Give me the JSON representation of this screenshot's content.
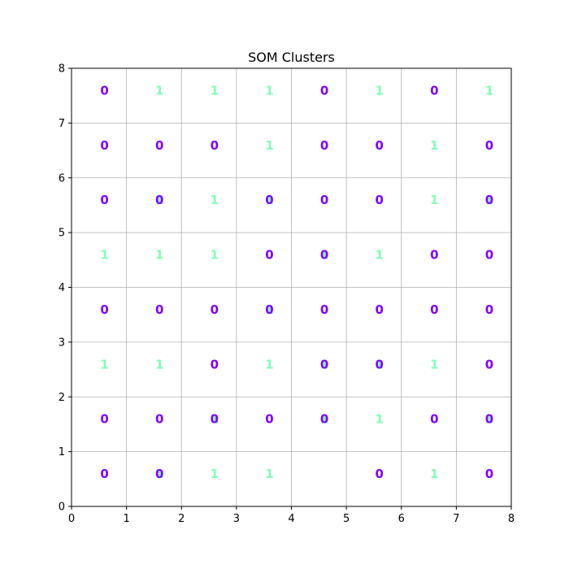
{
  "chart_data": {
    "type": "scatter",
    "title": "SOM Clusters",
    "xlabel": "",
    "ylabel": "",
    "xlim": [
      0,
      8
    ],
    "ylim": [
      0,
      8
    ],
    "xticks": [
      "0",
      "1",
      "2",
      "3",
      "4",
      "5",
      "6",
      "7",
      "8"
    ],
    "yticks": [
      "0",
      "1",
      "2",
      "3",
      "4",
      "5",
      "6",
      "7",
      "8"
    ],
    "grid": true,
    "colors": {
      "0": "#8000ff",
      "1": "#80ffb4"
    },
    "grid_rows_top_to_bottom": [
      [
        [
          "0"
        ],
        [
          "1"
        ],
        [
          "1"
        ],
        [
          "1"
        ],
        [
          "0"
        ],
        [
          "1"
        ],
        [
          "0"
        ],
        [
          "1"
        ]
      ],
      [
        [
          "0"
        ],
        [
          "0"
        ],
        [
          "0"
        ],
        [
          "1"
        ],
        [
          "0"
        ],
        [
          "0"
        ],
        [
          "1"
        ],
        [
          "0"
        ]
      ],
      [
        [
          "0"
        ],
        [
          "1",
          "0"
        ],
        [
          "1"
        ],
        [
          "1",
          "0"
        ],
        [
          "0"
        ],
        [
          "0"
        ],
        [
          "1"
        ],
        [
          "1",
          "0"
        ]
      ],
      [
        [
          "1"
        ],
        [
          "1"
        ],
        [
          "1"
        ],
        [
          "0"
        ],
        [
          "1",
          "0"
        ],
        [
          "1"
        ],
        [
          "0"
        ],
        [
          "0"
        ]
      ],
      [
        [
          "0"
        ],
        [
          "0"
        ],
        [
          "0"
        ],
        [
          "1",
          "0"
        ],
        [
          "0"
        ],
        [
          "0"
        ],
        [
          "0"
        ],
        [
          "0"
        ]
      ],
      [
        [
          "1"
        ],
        [
          "1"
        ],
        [
          "0"
        ],
        [
          "1"
        ],
        [
          "1",
          "0"
        ],
        [
          "1",
          "0"
        ],
        [
          "1"
        ],
        [
          "0"
        ]
      ],
      [
        [
          "0"
        ],
        [
          "0"
        ],
        [
          "1",
          "0"
        ],
        [
          "0"
        ],
        [
          "1",
          "0"
        ],
        [
          "1"
        ],
        [
          "0"
        ],
        [
          "1",
          "0"
        ]
      ],
      [
        [
          "0"
        ],
        [
          "1",
          "0"
        ],
        [
          "1"
        ],
        [
          "1"
        ],
        [],
        [
          "0"
        ],
        [
          "1"
        ],
        [
          "0"
        ]
      ]
    ]
  }
}
